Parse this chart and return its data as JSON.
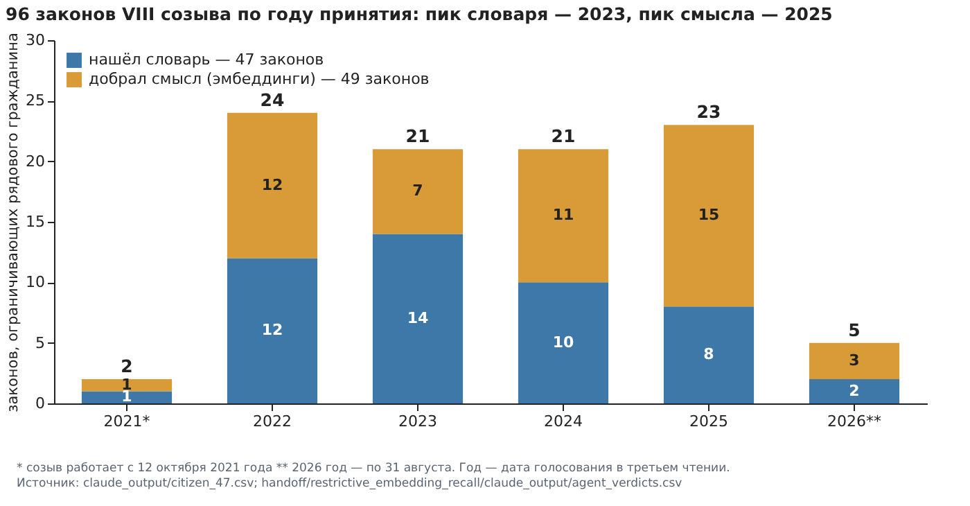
{
  "chart_data": {
    "type": "bar",
    "stacked": true,
    "title": "96 законов VIII созыва по году принятия: пик словаря — 2023, пик смысла — 2025",
    "ylabel": "законов, ограничивающих рядового гражданина",
    "categories": [
      "2021*",
      "2022",
      "2023",
      "2024",
      "2025",
      "2026**"
    ],
    "series": [
      {
        "name": "нашёл словарь — 47 законов",
        "color": "#3d78a9",
        "values": [
          1,
          12,
          14,
          10,
          8,
          2
        ]
      },
      {
        "name": "добрал смысл (эмбеддинги) — 49 законов",
        "color": "#d89b37",
        "values": [
          1,
          12,
          7,
          11,
          15,
          3
        ]
      }
    ],
    "totals": [
      "2",
      "24",
      "21",
      "21",
      "23",
      "5"
    ],
    "data_labels": true,
    "ylim": [
      0,
      30
    ],
    "yticks": [
      0,
      5,
      10,
      15,
      20,
      25,
      30
    ],
    "legend": "top left",
    "annotations": [
      "* созыв работает с 12 октября 2021 года   ** 2026 год — по 31 августа. Год — дата голосования в третьем чтении.",
      "Источник: claude_output/citizen_47.csv; handoff/restrictive_embedding_recall/claude_output/agent_verdicts.csv"
    ]
  }
}
